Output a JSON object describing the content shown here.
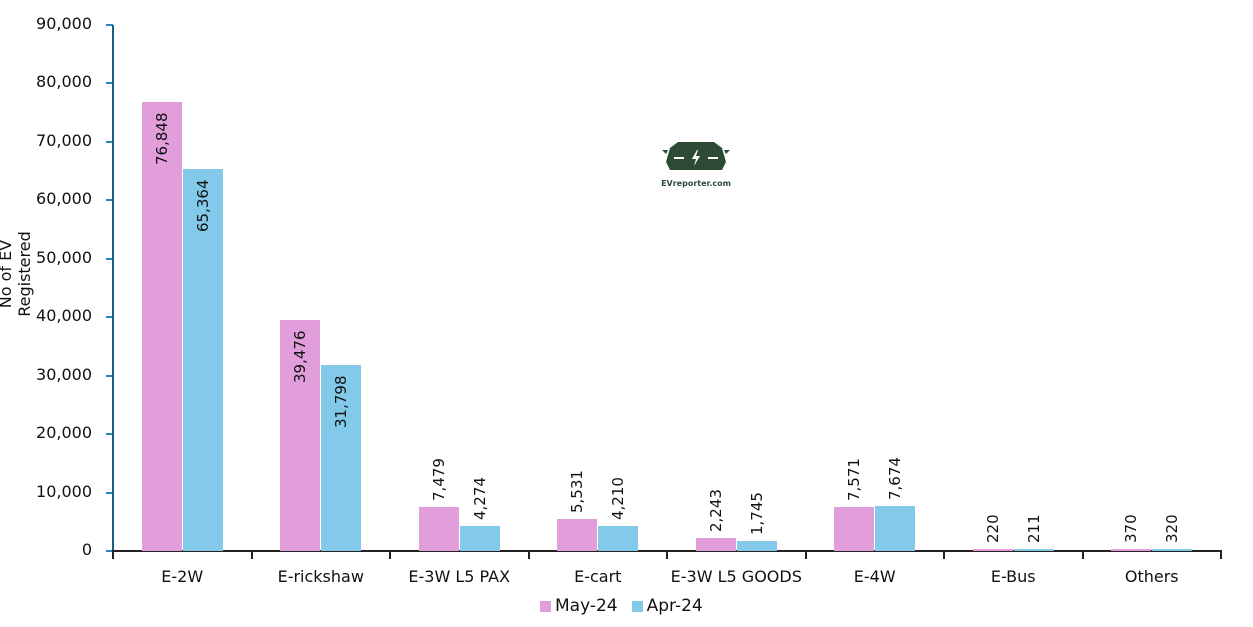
{
  "chart_data": {
    "type": "bar",
    "title": "",
    "xlabel": "",
    "ylabel": "No of EV Registered",
    "ylim": [
      0,
      90000
    ],
    "yticks": [
      "0",
      "10,000",
      "20,000",
      "30,000",
      "40,000",
      "50,000",
      "60,000",
      "70,000",
      "80,000",
      "90,000"
    ],
    "grid": false,
    "legend_position": "bottom",
    "categories": [
      "E-2W",
      "E-rickshaw",
      "E-3W L5 PAX",
      "E-cart",
      "E-3W L5 GOODS",
      "E-4W",
      "E-Bus",
      "Others"
    ],
    "series": [
      {
        "name": "May-24",
        "color": "#e29edb",
        "values": [
          76848,
          39476,
          7479,
          5531,
          2243,
          7571,
          220,
          370
        ],
        "labels": [
          "76,848",
          "39,476",
          "7,479",
          "5,531",
          "2,243",
          "7,571",
          "220",
          "370"
        ]
      },
      {
        "name": "Apr-24",
        "color": "#82c9ea",
        "values": [
          65364,
          31798,
          4274,
          4210,
          1745,
          7674,
          211,
          320
        ],
        "labels": [
          "65,364",
          "31,798",
          "4,274",
          "4,210",
          "1,745",
          "7,674",
          "211",
          "320"
        ]
      }
    ]
  },
  "watermark": {
    "text": "EVreporter.com",
    "icon": "car-charging-icon",
    "color": "#2c4a34"
  }
}
